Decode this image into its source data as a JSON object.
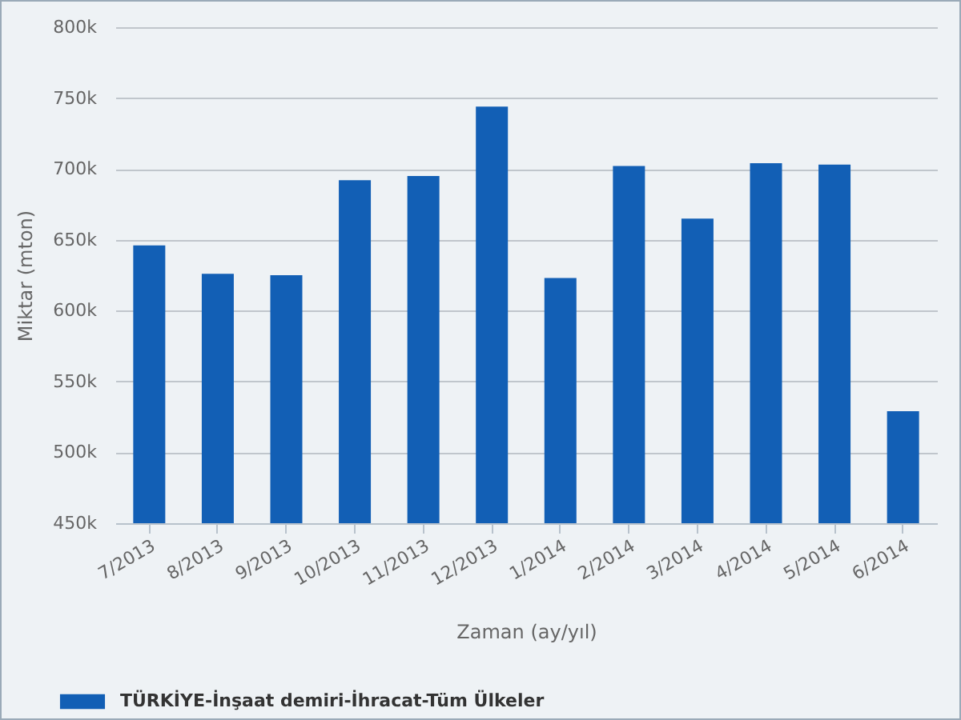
{
  "chart_data": {
    "type": "bar",
    "xlabel": "Zaman (ay/yıl)",
    "ylabel": "Miktar (mton)",
    "categories": [
      "7/2013",
      "8/2013",
      "9/2013",
      "10/2013",
      "11/2013",
      "12/2013",
      "1/2014",
      "2/2014",
      "3/2014",
      "4/2014",
      "5/2014",
      "6/2014"
    ],
    "series": [
      {
        "name": "TÜRKİYE-İnşaat demiri-İhracat-Tüm Ülkeler",
        "color": "#125fb5",
        "values": [
          646000,
          626000,
          625000,
          692000,
          695000,
          744000,
          623000,
          702000,
          665000,
          704000,
          703000,
          529000
        ]
      }
    ],
    "ylim": [
      450000,
      800000
    ],
    "yticks": [
      {
        "value": 450000,
        "label": "450k"
      },
      {
        "value": 500000,
        "label": "500k"
      },
      {
        "value": 550000,
        "label": "550k"
      },
      {
        "value": 600000,
        "label": "600k"
      },
      {
        "value": 650000,
        "label": "650k"
      },
      {
        "value": 700000,
        "label": "700k"
      },
      {
        "value": 750000,
        "label": "750k"
      },
      {
        "value": 800000,
        "label": "800k"
      }
    ],
    "grid": "y",
    "legend": "bottom left"
  }
}
